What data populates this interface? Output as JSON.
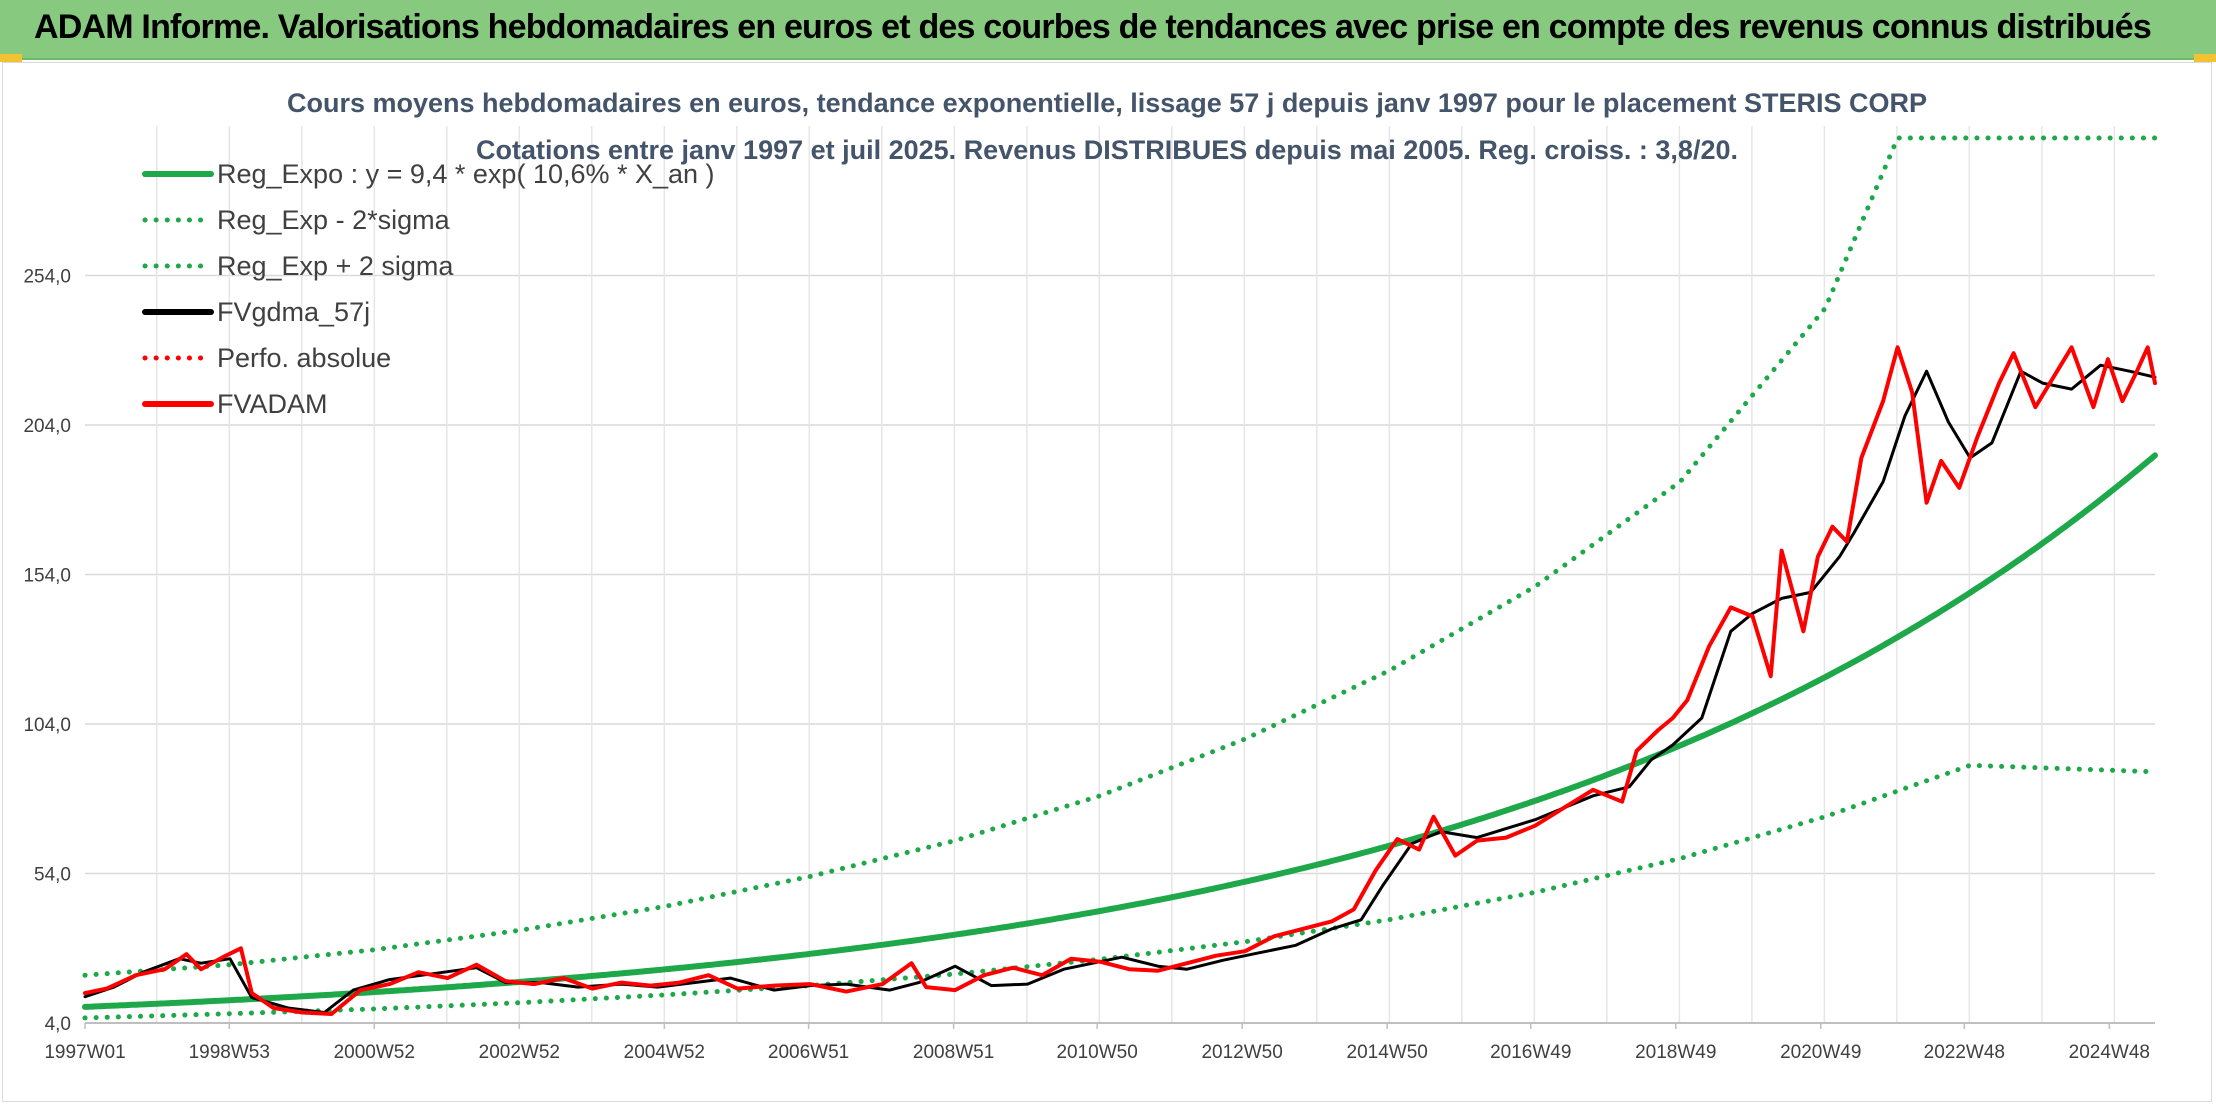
{
  "banner": {
    "title": "ADAM Informe. Valorisations hebdomadaires en euros et des courbes de tendances avec prise en compte des revenus connus distribués"
  },
  "colors": {
    "banner_bg": "#86c97f",
    "reg_green": "#1ea84a",
    "fvgdma": "#000000",
    "fvadam": "#ff0000",
    "title_text": "#44546a"
  },
  "chart_data": {
    "type": "line",
    "title": "Cours moyens hebdomadaires en euros, tendance exponentielle, lissage 57 j depuis janv 1997 pour le placement STERIS CORP",
    "subtitle": "Cotations entre janv 1997 et juil 2025. Revenus DISTRIBUES depuis mai 2005. Reg. croiss. : 3,8/20.",
    "xlabel": "",
    "ylabel": "",
    "x_range": [
      1997.0,
      2025.55
    ],
    "ylim": [
      4,
      304
    ],
    "y_ticks": [
      "4,0",
      "54,0",
      "104,0",
      "154,0",
      "204,0",
      "254,0"
    ],
    "x_ticks": [
      {
        "label": "1997W01",
        "x": 1997.0
      },
      {
        "label": "1998W53",
        "x": 1998.99
      },
      {
        "label": "2000W52",
        "x": 2000.99
      },
      {
        "label": "2002W52",
        "x": 2002.99
      },
      {
        "label": "2004W52",
        "x": 2004.99
      },
      {
        "label": "2006W51",
        "x": 2006.98
      },
      {
        "label": "2008W51",
        "x": 2008.98
      },
      {
        "label": "2010W50",
        "x": 2010.96
      },
      {
        "label": "2012W50",
        "x": 2012.96
      },
      {
        "label": "2014W50",
        "x": 2014.96
      },
      {
        "label": "2016W49",
        "x": 2016.94
      },
      {
        "label": "2018W49",
        "x": 2018.94
      },
      {
        "label": "2020W49",
        "x": 2020.94
      },
      {
        "label": "2022W48",
        "x": 2022.92
      },
      {
        "label": "2024W48",
        "x": 2024.92
      }
    ],
    "grid": true,
    "legend_position": "top-left",
    "regression": {
      "a": 9.4,
      "rate": 0.106,
      "x0": 1997.0
    },
    "series": [
      {
        "name": "Reg_Expo : y = 9,4 * exp( 10,6% *  X_an )",
        "style": "solid",
        "color": "#1ea84a",
        "x": [
          1997,
          1999,
          2001,
          2003,
          2005,
          2007,
          2009,
          2011,
          2013,
          2015,
          2017,
          2019,
          2021,
          2023,
          2025.55
        ],
        "values": [
          9.4,
          11.6,
          14.4,
          17.8,
          22.0,
          27.2,
          33.7,
          41.6,
          51.5,
          63.6,
          78.7,
          97.3,
          120.3,
          148.7,
          195.0
        ]
      },
      {
        "name": "Reg_Exp - 2*sigma",
        "style": "dotted",
        "color": "#1ea84a",
        "x": [
          1997,
          1999,
          2001,
          2003,
          2005,
          2007,
          2009,
          2011,
          2013,
          2015,
          2017,
          2019,
          2021,
          2023,
          2025.55
        ],
        "values": [
          5.7,
          7.1,
          8.7,
          10.8,
          13.4,
          16.5,
          20.4,
          25.3,
          31.2,
          38.6,
          47.7,
          59.0,
          73.0,
          90.2,
          88.0
        ]
      },
      {
        "name": "Reg_Exp + 2 sigma",
        "style": "dotted",
        "color": "#1ea84a",
        "x": [
          1997,
          1999,
          2001,
          2003,
          2005,
          2007,
          2009,
          2011,
          2013,
          2015,
          2017,
          2019,
          2021,
          2022,
          2025.55
        ],
        "values": [
          20.0,
          23.5,
          28.5,
          35.0,
          43.0,
          53.0,
          65.0,
          80.0,
          99.0,
          122.0,
          150.0,
          185.0,
          243.0,
          300.0,
          300.0
        ]
      },
      {
        "name": "FVgdma_57j",
        "style": "solid",
        "color": "#000000",
        "x": [
          1997,
          1997.4,
          1997.8,
          1998.3,
          1998.6,
          1999.0,
          1999.3,
          1999.8,
          2000.3,
          2000.7,
          2001.2,
          2001.8,
          2002.4,
          2002.8,
          2003.3,
          2003.8,
          2004.4,
          2004.9,
          2005.4,
          2005.9,
          2006.5,
          2007.0,
          2007.5,
          2008.1,
          2008.5,
          2009.0,
          2009.5,
          2010.0,
          2010.5,
          2010.9,
          2011.3,
          2011.8,
          2012.2,
          2012.7,
          2013.2,
          2013.7,
          2014.2,
          2014.6,
          2014.9,
          2015.3,
          2015.7,
          2016.2,
          2016.6,
          2017.0,
          2017.4,
          2017.8,
          2018.3,
          2018.6,
          2018.9,
          2019.3,
          2019.7,
          2020.0,
          2020.4,
          2020.8,
          2021.2,
          2021.4,
          2021.8,
          2022.1,
          2022.4,
          2022.7,
          2023.0,
          2023.3,
          2023.7,
          2024.0,
          2024.4,
          2024.8,
          2025.2,
          2025.55
        ],
        "values": [
          12.8,
          16.0,
          21.0,
          25.5,
          24.0,
          25.5,
          12.5,
          9.0,
          7.5,
          15.0,
          18.5,
          20.5,
          22.5,
          17.5,
          17.5,
          16.0,
          17.0,
          16.0,
          17.5,
          19.0,
          15.0,
          16.5,
          17.0,
          15.0,
          17.5,
          23.0,
          16.5,
          17.0,
          22.0,
          24.0,
          26.0,
          23.0,
          22.0,
          25.0,
          27.5,
          30.0,
          35.5,
          38.5,
          50.0,
          64.0,
          68.0,
          66.0,
          69.0,
          72.0,
          76.0,
          80.0,
          83.0,
          92.0,
          97.0,
          106.0,
          135.0,
          141.0,
          146.0,
          148.0,
          160.0,
          168.0,
          185.0,
          207.0,
          222.0,
          205.0,
          193.0,
          198.0,
          222.0,
          218.0,
          216.0,
          224.0,
          222.0,
          220.0
        ]
      },
      {
        "name": "Perfo. absolue",
        "style": "dotted",
        "color": "#ff0000",
        "x": [],
        "values": []
      },
      {
        "name": "FVADAM",
        "style": "solid",
        "color": "#ff0000",
        "x": [
          1997,
          1997.3,
          1997.7,
          1998.1,
          1998.4,
          1998.6,
          1998.9,
          1999.15,
          1999.3,
          1999.6,
          2000.0,
          2000.4,
          2000.8,
          2001.2,
          2001.6,
          2002.0,
          2002.4,
          2002.8,
          2003.2,
          2003.6,
          2004.0,
          2004.4,
          2004.8,
          2005.2,
          2005.6,
          2006.0,
          2006.5,
          2007.0,
          2007.5,
          2008.0,
          2008.4,
          2008.6,
          2009.0,
          2009.4,
          2009.8,
          2010.2,
          2010.6,
          2011.0,
          2011.4,
          2011.8,
          2012.2,
          2012.6,
          2013.0,
          2013.4,
          2013.8,
          2014.2,
          2014.5,
          2014.8,
          2015.1,
          2015.4,
          2015.6,
          2015.9,
          2016.2,
          2016.6,
          2017.0,
          2017.4,
          2017.8,
          2018.2,
          2018.4,
          2018.7,
          2018.9,
          2019.1,
          2019.4,
          2019.7,
          2020.0,
          2020.25,
          2020.4,
          2020.7,
          2020.9,
          2021.1,
          2021.3,
          2021.5,
          2021.8,
          2022.0,
          2022.2,
          2022.4,
          2022.6,
          2022.85,
          2023.1,
          2023.4,
          2023.6,
          2023.9,
          2024.2,
          2024.4,
          2024.7,
          2024.9,
          2025.1,
          2025.3,
          2025.45,
          2025.55
        ],
        "values": [
          14.0,
          15.5,
          20.0,
          22.0,
          27.0,
          22.0,
          26.0,
          29.0,
          14.0,
          9.0,
          7.5,
          7.0,
          15.0,
          17.0,
          21.0,
          19.0,
          23.5,
          18.0,
          17.0,
          19.0,
          15.5,
          17.5,
          16.5,
          17.5,
          20.0,
          15.5,
          16.5,
          17.0,
          14.5,
          17.0,
          24.0,
          16.0,
          15.0,
          20.0,
          22.5,
          20.0,
          25.5,
          24.5,
          22.0,
          21.5,
          24.0,
          26.5,
          28.0,
          33.0,
          35.5,
          38.0,
          42.0,
          55.0,
          65.5,
          62.0,
          73.0,
          60.0,
          65.0,
          66.0,
          70.0,
          76.0,
          82.0,
          78.0,
          95.0,
          102.0,
          106.0,
          112.0,
          130.0,
          143.0,
          140.0,
          120.0,
          162.0,
          135.0,
          160.0,
          170.0,
          165.0,
          193.0,
          212.0,
          230.0,
          215.0,
          178.0,
          192.0,
          183.0,
          200.0,
          218.0,
          228.0,
          210.0,
          222.0,
          230.0,
          210.0,
          226.0,
          212.0,
          222.0,
          230.0,
          218.0
        ]
      }
    ]
  }
}
